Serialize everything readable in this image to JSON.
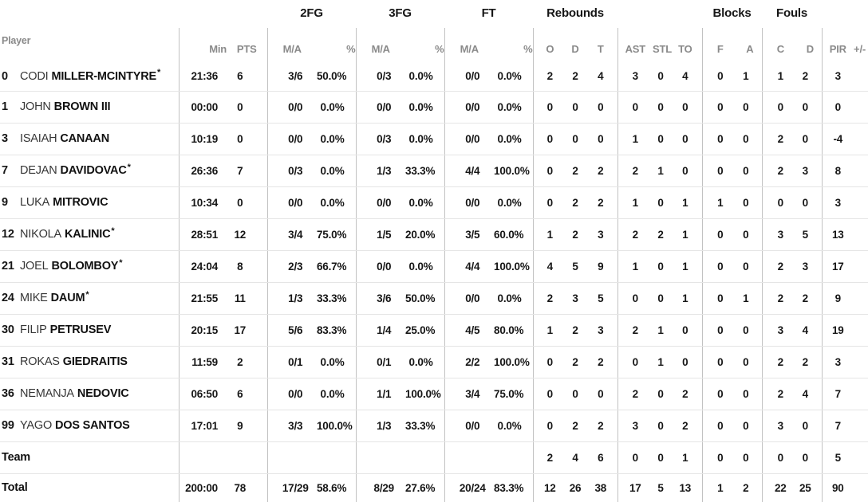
{
  "table": {
    "starter_mark": "*",
    "groups": {
      "fg2": "2FG",
      "fg3": "3FG",
      "ft": "FT",
      "rebounds": "Rebounds",
      "blocks": "Blocks",
      "fouls": "Fouls"
    },
    "headers": {
      "player": "Player",
      "min": "Min",
      "pts": "PTS",
      "ma": "M/A",
      "pct": "%",
      "reb_o": "O",
      "reb_d": "D",
      "reb_t": "T",
      "ast": "AST",
      "stl": "STL",
      "to": "TO",
      "blk_f": "F",
      "blk_a": "A",
      "foul_c": "C",
      "foul_d": "D",
      "pir": "PIR",
      "plusminus": "+/-"
    },
    "rows": [
      {
        "type": "player",
        "number": "0",
        "first": "CODI",
        "last": "MILLER-MCINTYRE",
        "starter": true,
        "min": "21:36",
        "pts": "6",
        "fg2_ma": "3/6",
        "fg2_pct": "50.0%",
        "fg3_ma": "0/3",
        "fg3_pct": "0.0%",
        "ft_ma": "0/0",
        "ft_pct": "0.0%",
        "reb_o": "2",
        "reb_d": "2",
        "reb_t": "4",
        "ast": "3",
        "stl": "0",
        "to": "4",
        "blk_f": "0",
        "blk_a": "1",
        "foul_c": "1",
        "foul_d": "2",
        "pir": "3"
      },
      {
        "type": "player",
        "number": "1",
        "first": "JOHN",
        "last": "BROWN III",
        "starter": false,
        "min": "00:00",
        "pts": "0",
        "fg2_ma": "0/0",
        "fg2_pct": "0.0%",
        "fg3_ma": "0/0",
        "fg3_pct": "0.0%",
        "ft_ma": "0/0",
        "ft_pct": "0.0%",
        "reb_o": "0",
        "reb_d": "0",
        "reb_t": "0",
        "ast": "0",
        "stl": "0",
        "to": "0",
        "blk_f": "0",
        "blk_a": "0",
        "foul_c": "0",
        "foul_d": "0",
        "pir": "0"
      },
      {
        "type": "player",
        "number": "3",
        "first": "ISAIAH",
        "last": "CANAAN",
        "starter": false,
        "min": "10:19",
        "pts": "0",
        "fg2_ma": "0/0",
        "fg2_pct": "0.0%",
        "fg3_ma": "0/3",
        "fg3_pct": "0.0%",
        "ft_ma": "0/0",
        "ft_pct": "0.0%",
        "reb_o": "0",
        "reb_d": "0",
        "reb_t": "0",
        "ast": "1",
        "stl": "0",
        "to": "0",
        "blk_f": "0",
        "blk_a": "0",
        "foul_c": "2",
        "foul_d": "0",
        "pir": "-4"
      },
      {
        "type": "player",
        "number": "7",
        "first": "DEJAN",
        "last": "DAVIDOVAC",
        "starter": true,
        "min": "26:36",
        "pts": "7",
        "fg2_ma": "0/3",
        "fg2_pct": "0.0%",
        "fg3_ma": "1/3",
        "fg3_pct": "33.3%",
        "ft_ma": "4/4",
        "ft_pct": "100.0%",
        "reb_o": "0",
        "reb_d": "2",
        "reb_t": "2",
        "ast": "2",
        "stl": "1",
        "to": "0",
        "blk_f": "0",
        "blk_a": "0",
        "foul_c": "2",
        "foul_d": "3",
        "pir": "8"
      },
      {
        "type": "player",
        "number": "9",
        "first": "LUKA",
        "last": "MITROVIC",
        "starter": false,
        "min": "10:34",
        "pts": "0",
        "fg2_ma": "0/0",
        "fg2_pct": "0.0%",
        "fg3_ma": "0/0",
        "fg3_pct": "0.0%",
        "ft_ma": "0/0",
        "ft_pct": "0.0%",
        "reb_o": "0",
        "reb_d": "2",
        "reb_t": "2",
        "ast": "1",
        "stl": "0",
        "to": "1",
        "blk_f": "1",
        "blk_a": "0",
        "foul_c": "0",
        "foul_d": "0",
        "pir": "3"
      },
      {
        "type": "player",
        "number": "12",
        "first": "NIKOLA",
        "last": "KALINIC",
        "starter": true,
        "min": "28:51",
        "pts": "12",
        "fg2_ma": "3/4",
        "fg2_pct": "75.0%",
        "fg3_ma": "1/5",
        "fg3_pct": "20.0%",
        "ft_ma": "3/5",
        "ft_pct": "60.0%",
        "reb_o": "1",
        "reb_d": "2",
        "reb_t": "3",
        "ast": "2",
        "stl": "2",
        "to": "1",
        "blk_f": "0",
        "blk_a": "0",
        "foul_c": "3",
        "foul_d": "5",
        "pir": "13"
      },
      {
        "type": "player",
        "number": "21",
        "first": "JOEL",
        "last": "BOLOMBOY",
        "starter": true,
        "min": "24:04",
        "pts": "8",
        "fg2_ma": "2/3",
        "fg2_pct": "66.7%",
        "fg3_ma": "0/0",
        "fg3_pct": "0.0%",
        "ft_ma": "4/4",
        "ft_pct": "100.0%",
        "reb_o": "4",
        "reb_d": "5",
        "reb_t": "9",
        "ast": "1",
        "stl": "0",
        "to": "1",
        "blk_f": "0",
        "blk_a": "0",
        "foul_c": "2",
        "foul_d": "3",
        "pir": "17"
      },
      {
        "type": "player",
        "number": "24",
        "first": "MIKE",
        "last": "DAUM",
        "starter": true,
        "min": "21:55",
        "pts": "11",
        "fg2_ma": "1/3",
        "fg2_pct": "33.3%",
        "fg3_ma": "3/6",
        "fg3_pct": "50.0%",
        "ft_ma": "0/0",
        "ft_pct": "0.0%",
        "reb_o": "2",
        "reb_d": "3",
        "reb_t": "5",
        "ast": "0",
        "stl": "0",
        "to": "1",
        "blk_f": "0",
        "blk_a": "1",
        "foul_c": "2",
        "foul_d": "2",
        "pir": "9"
      },
      {
        "type": "player",
        "number": "30",
        "first": "FILIP",
        "last": "PETRUSEV",
        "starter": false,
        "min": "20:15",
        "pts": "17",
        "fg2_ma": "5/6",
        "fg2_pct": "83.3%",
        "fg3_ma": "1/4",
        "fg3_pct": "25.0%",
        "ft_ma": "4/5",
        "ft_pct": "80.0%",
        "reb_o": "1",
        "reb_d": "2",
        "reb_t": "3",
        "ast": "2",
        "stl": "1",
        "to": "0",
        "blk_f": "0",
        "blk_a": "0",
        "foul_c": "3",
        "foul_d": "4",
        "pir": "19"
      },
      {
        "type": "player",
        "number": "31",
        "first": "ROKAS",
        "last": "GIEDRAITIS",
        "starter": false,
        "min": "11:59",
        "pts": "2",
        "fg2_ma": "0/1",
        "fg2_pct": "0.0%",
        "fg3_ma": "0/1",
        "fg3_pct": "0.0%",
        "ft_ma": "2/2",
        "ft_pct": "100.0%",
        "reb_o": "0",
        "reb_d": "2",
        "reb_t": "2",
        "ast": "0",
        "stl": "1",
        "to": "0",
        "blk_f": "0",
        "blk_a": "0",
        "foul_c": "2",
        "foul_d": "2",
        "pir": "3"
      },
      {
        "type": "player",
        "number": "36",
        "first": "NEMANJA",
        "last": "NEDOVIC",
        "starter": false,
        "min": "06:50",
        "pts": "6",
        "fg2_ma": "0/0",
        "fg2_pct": "0.0%",
        "fg3_ma": "1/1",
        "fg3_pct": "100.0%",
        "ft_ma": "3/4",
        "ft_pct": "75.0%",
        "reb_o": "0",
        "reb_d": "0",
        "reb_t": "0",
        "ast": "2",
        "stl": "0",
        "to": "2",
        "blk_f": "0",
        "blk_a": "0",
        "foul_c": "2",
        "foul_d": "4",
        "pir": "7"
      },
      {
        "type": "player",
        "number": "99",
        "first": "YAGO",
        "last": "DOS SANTOS",
        "starter": false,
        "min": "17:01",
        "pts": "9",
        "fg2_ma": "3/3",
        "fg2_pct": "100.0%",
        "fg3_ma": "1/3",
        "fg3_pct": "33.3%",
        "ft_ma": "0/0",
        "ft_pct": "0.0%",
        "reb_o": "0",
        "reb_d": "2",
        "reb_t": "2",
        "ast": "3",
        "stl": "0",
        "to": "2",
        "blk_f": "0",
        "blk_a": "0",
        "foul_c": "3",
        "foul_d": "0",
        "pir": "7"
      },
      {
        "type": "team",
        "label": "Team",
        "reb_o": "2",
        "reb_d": "4",
        "reb_t": "6",
        "ast": "0",
        "stl": "0",
        "to": "1",
        "blk_f": "0",
        "blk_a": "0",
        "foul_c": "0",
        "foul_d": "0",
        "pir": "5"
      },
      {
        "type": "total",
        "label": "Total",
        "min": "200:00",
        "pts": "78",
        "fg2_ma": "17/29",
        "fg2_pct": "58.6%",
        "fg3_ma": "8/29",
        "fg3_pct": "27.6%",
        "ft_ma": "20/24",
        "ft_pct": "83.3%",
        "reb_o": "12",
        "reb_d": "26",
        "reb_t": "38",
        "ast": "17",
        "stl": "5",
        "to": "13",
        "blk_f": "1",
        "blk_a": "2",
        "foul_c": "22",
        "foul_d": "25",
        "pir": "90"
      }
    ]
  },
  "colors": {
    "text": "#161616",
    "muted_header": "#8a8a8a",
    "divider": "#c2c2c2",
    "row_line": "#e5e5e5"
  }
}
